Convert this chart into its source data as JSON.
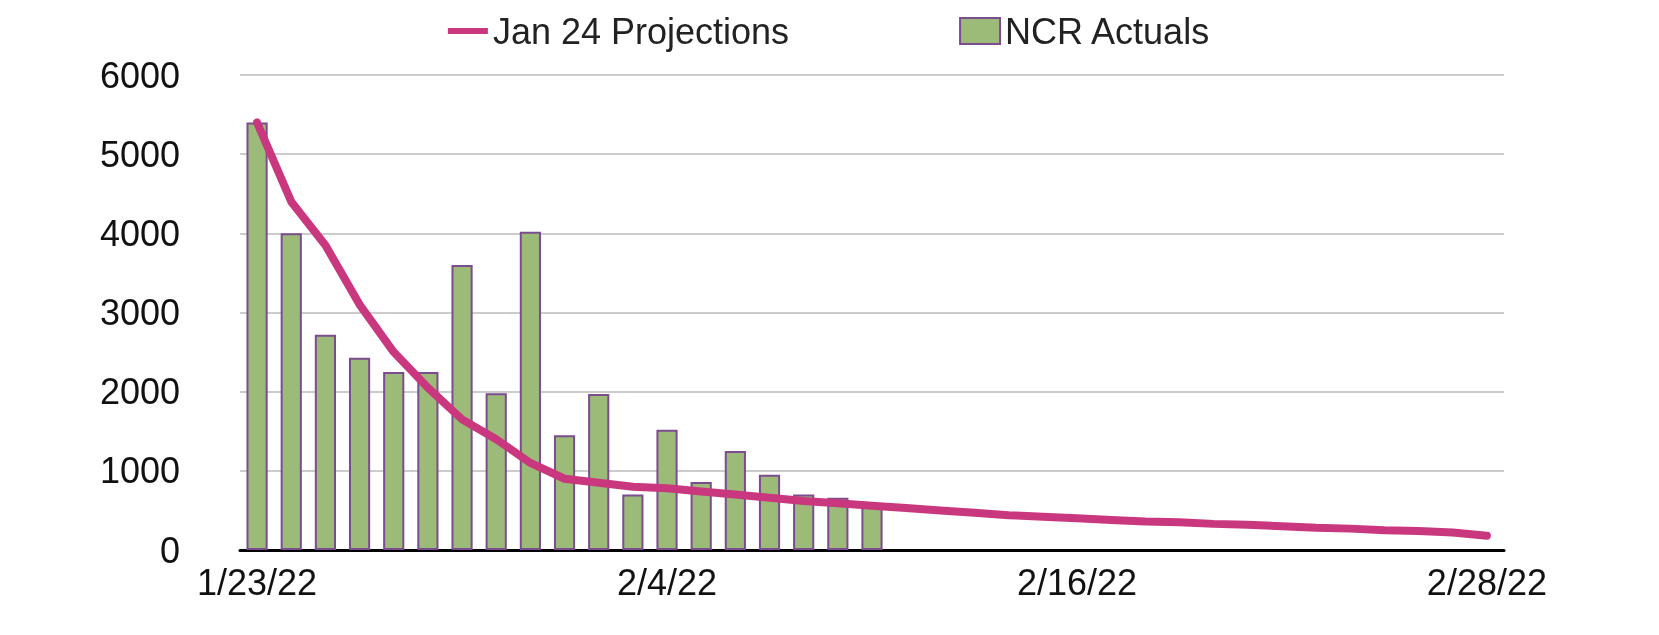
{
  "chart_data": {
    "type": "bar",
    "categories": [
      "1/23/22",
      null,
      null,
      null,
      null,
      null,
      null,
      null,
      null,
      null,
      null,
      null,
      "2/4/22",
      null,
      null,
      null,
      null,
      null,
      null,
      null,
      null,
      null,
      null,
      null,
      "2/16/22",
      null,
      null,
      null,
      null,
      null,
      null,
      null,
      null,
      null,
      null,
      null,
      "2/28/22"
    ],
    "series": [
      {
        "name": "Jan 24 Projections",
        "type": "line",
        "color": "#c9387f",
        "values": [
          5400,
          4400,
          3850,
          3100,
          2500,
          2050,
          1650,
          1400,
          1100,
          900,
          850,
          800,
          780,
          740,
          700,
          660,
          620,
          590,
          560,
          530,
          500,
          470,
          440,
          420,
          400,
          380,
          360,
          350,
          330,
          320,
          300,
          280,
          270,
          250,
          240,
          220,
          180
        ]
      },
      {
        "name": "NCR Actuals",
        "color": "#9cbb78",
        "values": [
          5400,
          4000,
          2720,
          2430,
          2250,
          2250,
          3600,
          1980,
          4020,
          1450,
          1970,
          700,
          1520,
          860,
          1250,
          950,
          700,
          660,
          550,
          null,
          null,
          null,
          null,
          null,
          null,
          null,
          null,
          null,
          null,
          null,
          null,
          null,
          null,
          null,
          null,
          null,
          null
        ]
      }
    ],
    "ylim": [
      0,
      6000
    ],
    "yticks": [
      0,
      1000,
      2000,
      3000,
      4000,
      5000,
      6000
    ],
    "grid": "y",
    "legend": "top"
  }
}
